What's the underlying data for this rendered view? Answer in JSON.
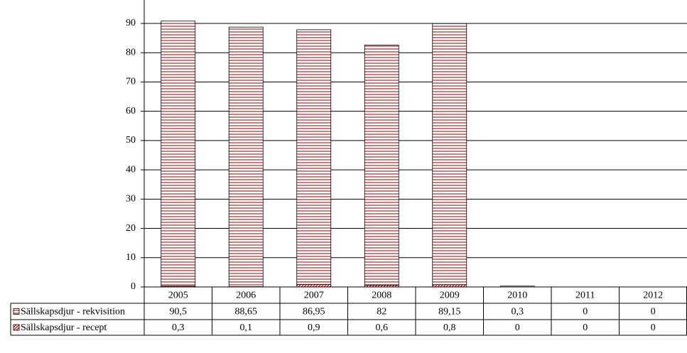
{
  "chart_data": {
    "type": "bar",
    "stacked": true,
    "categories": [
      "2005",
      "2006",
      "2007",
      "2008",
      "2009",
      "2010",
      "2011",
      "2012"
    ],
    "series": [
      {
        "name": "Sällskapsdjur - rekvisition",
        "color": "#8b0000",
        "values": [
          90.5,
          88.65,
          86.95,
          82,
          89.15,
          0.3,
          0,
          0
        ],
        "value_labels": [
          "90,5",
          "88,65",
          "86,95",
          "82",
          "89,15",
          "0,3",
          "0",
          "0"
        ]
      },
      {
        "name": "Sällskapsdjur - recept",
        "color": "#cc0000",
        "values": [
          0.3,
          0.1,
          0.9,
          0.6,
          0.8,
          0,
          0,
          0
        ],
        "value_labels": [
          "0,3",
          "0,1",
          "0,9",
          "0,6",
          "0,8",
          "0",
          "0",
          "0"
        ]
      }
    ],
    "ylim": [
      0,
      98
    ],
    "yticks": [
      0,
      10,
      20,
      30,
      40,
      50,
      60,
      70,
      80,
      90
    ],
    "grid": true
  }
}
